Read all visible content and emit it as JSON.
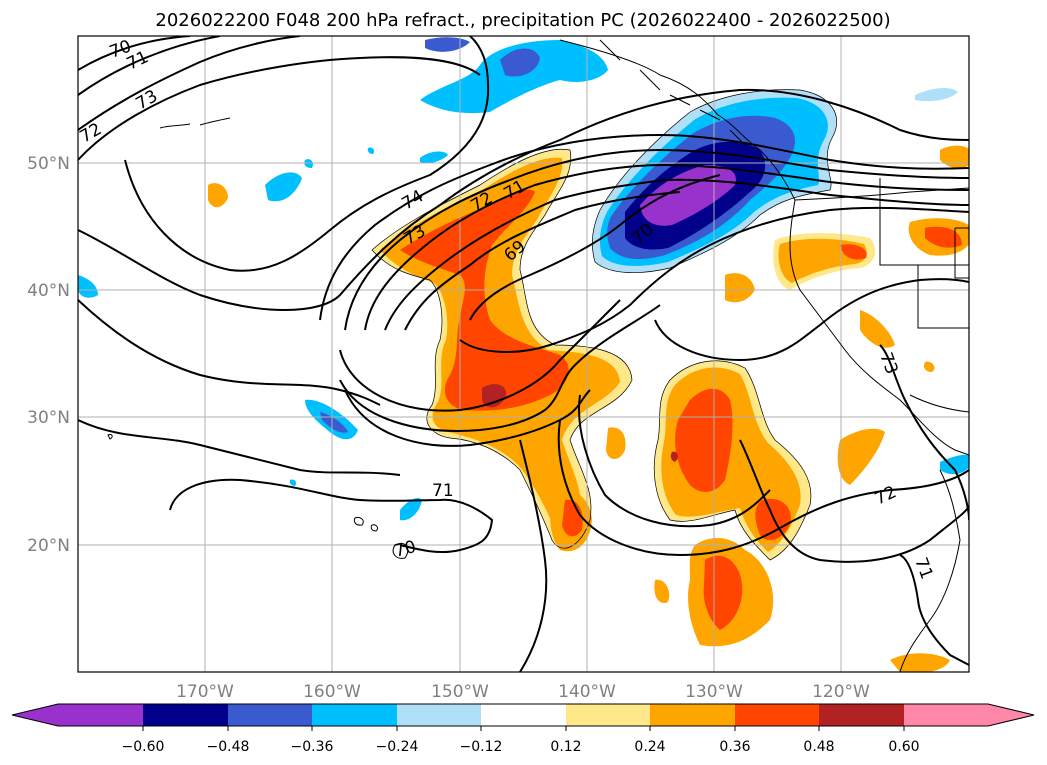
{
  "title": "2026022200 F048 200 hPa refract., precipitation PC (2026022400 - 2026022500)",
  "map": {
    "lat_labels": [
      "50°N",
      "40°N",
      "30°N",
      "20°N"
    ],
    "lon_labels": [
      "170°W",
      "160°W",
      "150°W",
      "140°W",
      "130°W",
      "120°W"
    ],
    "contour_labels": [
      "70",
      "71",
      "72",
      "73",
      "74",
      "73",
      "72",
      "71",
      "69",
      "70",
      "71",
      "70",
      "72",
      "73",
      "71"
    ]
  },
  "colorbar": {
    "ticks": [
      "−0.60",
      "−0.48",
      "−0.36",
      "−0.24",
      "−0.12",
      "0.12",
      "0.24",
      "0.36",
      "0.48",
      "0.60"
    ],
    "colors": [
      "#9932cc",
      "#00008b",
      "#3a5bd0",
      "#00bfff",
      "#b0e0f8",
      "#ffffff",
      "#ffe88a",
      "#ffa500",
      "#ff4500",
      "#b22222",
      "#ff88aa"
    ]
  }
}
